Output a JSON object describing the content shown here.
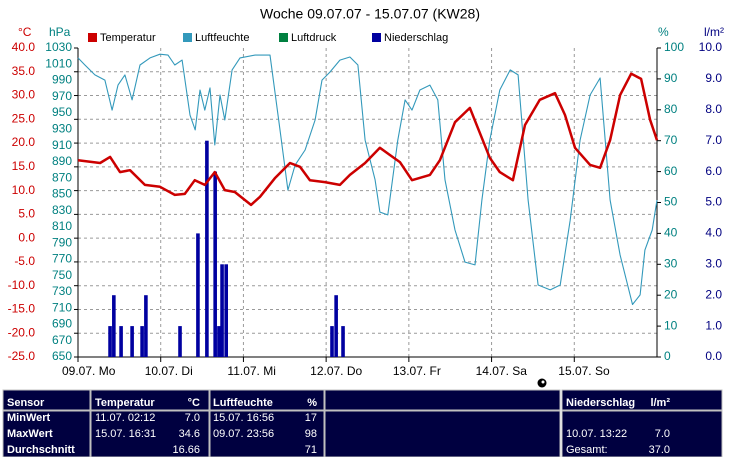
{
  "chart_data": {
    "type": "line",
    "title": "Woche 09.07.07 - 15.07.07 (KW28)",
    "ylabel": "°C",
    "y2label": "hPa",
    "y3label": "%",
    "y4label": "l/m²",
    "xlim": [
      0,
      168
    ],
    "xticks": [
      {
        "value": 0,
        "label": "09.07. Mo"
      },
      {
        "value": 24,
        "label": "10.07. Di"
      },
      {
        "value": 48,
        "label": "11.07. Mi"
      },
      {
        "value": 72,
        "label": "12.07. Do"
      },
      {
        "value": 96,
        "label": "13.07. Fr"
      },
      {
        "value": 120,
        "label": "14.07. Sa"
      },
      {
        "value": 144,
        "label": "15.07. So"
      }
    ],
    "ylim": [
      -25,
      40
    ],
    "yticks": [
      {
        "value": 40,
        "label": "40.0"
      },
      {
        "value": 35,
        "label": "35.0"
      },
      {
        "value": 30,
        "label": "30.0"
      },
      {
        "value": 25,
        "label": "25.0"
      },
      {
        "value": 20,
        "label": "20.0"
      },
      {
        "value": 15,
        "label": "15.0"
      },
      {
        "value": 10,
        "label": "10.0"
      },
      {
        "value": 5,
        "label": "5.0"
      },
      {
        "value": 0,
        "label": "0.0"
      },
      {
        "value": -5,
        "label": "-5.0"
      },
      {
        "value": -10,
        "label": "-10.0"
      },
      {
        "value": -15,
        "label": "-15.0"
      },
      {
        "value": -20,
        "label": "-20.0"
      },
      {
        "value": -25,
        "label": "-25.0"
      }
    ],
    "y2lim": [
      650,
      1030
    ],
    "y2ticks": [
      1030,
      1010,
      990,
      970,
      950,
      930,
      910,
      890,
      870,
      850,
      830,
      810,
      790,
      770,
      750,
      730,
      710,
      690,
      670,
      650
    ],
    "y3lim": [
      0,
      100
    ],
    "y3ticks": [
      100,
      90,
      80,
      70,
      60,
      50,
      40,
      30,
      20,
      10,
      0
    ],
    "y4lim": [
      0,
      10
    ],
    "y4ticks": [
      {
        "value": 10,
        "label": "10.0"
      },
      {
        "value": 9,
        "label": "9.0"
      },
      {
        "value": 8,
        "label": "8.0"
      },
      {
        "value": 7,
        "label": "7.0"
      },
      {
        "value": 6,
        "label": "6.0"
      },
      {
        "value": 5,
        "label": "5.0"
      },
      {
        "value": 4,
        "label": "4.0"
      },
      {
        "value": 3,
        "label": "3.0"
      },
      {
        "value": 2,
        "label": "2.0"
      },
      {
        "value": 1,
        "label": "1.0"
      },
      {
        "value": 0,
        "label": "0.0"
      }
    ],
    "grid": true,
    "series": [
      {
        "name": "Temperatur",
        "color": "#cc0000",
        "type": "line",
        "axis": "y",
        "x": [
          0,
          6.4,
          9.3,
          12.2,
          15.1,
          19.4,
          23.8,
          28.1,
          31,
          33.9,
          36.8,
          39.7,
          42.6,
          45.5,
          50.2,
          52.8,
          57.1,
          61.5,
          64.4,
          67.3,
          71.6,
          76,
          78.9,
          83.3,
          87.6,
          90.5,
          93.4,
          96.9,
          102.1,
          105,
          109.4,
          113.7,
          116.6,
          119.5,
          122.4,
          126.2,
          129.7,
          134,
          138.4,
          141.3,
          144.2,
          148.6,
          151.5,
          154.4,
          157.3,
          160.5,
          163.4,
          166,
          168
        ],
        "values": [
          16.4,
          15.8,
          17.1,
          13.9,
          14.3,
          11.2,
          10.8,
          9.1,
          9.3,
          12.2,
          11.2,
          13.9,
          10.1,
          9.7,
          7.0,
          8.7,
          12.6,
          15.8,
          15,
          12.2,
          11.8,
          11.2,
          13.3,
          15.8,
          19,
          17.5,
          16,
          12.2,
          13.3,
          16.4,
          24.4,
          27.4,
          22.1,
          16.9,
          13.9,
          12.2,
          23.8,
          29.1,
          30.5,
          25.9,
          19,
          15.4,
          14.8,
          20.6,
          30.1,
          34.6,
          33.5,
          24.9,
          20.6
        ]
      },
      {
        "name": "Luftfeuchte",
        "color": "#3399bb",
        "type": "line",
        "axis": "y3",
        "x": [
          0,
          2,
          4.9,
          7.8,
          9.9,
          11.6,
          13.6,
          15.7,
          18,
          20.9,
          23.8,
          26.1,
          28.1,
          30.2,
          32.5,
          34,
          35.4,
          36.8,
          38.3,
          39.7,
          41.2,
          42.6,
          44.7,
          47,
          51.4,
          55.7,
          58.6,
          60.9,
          63,
          65.9,
          68.8,
          70.8,
          73.1,
          76,
          78.9,
          81.2,
          83.3,
          86.2,
          87.6,
          89.9,
          92.8,
          94.9,
          96.9,
          99.2,
          102.1,
          104.4,
          106.5,
          109.4,
          112.3,
          115.2,
          117.2,
          119.5,
          122.4,
          125.4,
          127.7,
          130.6,
          133.5,
          137,
          139.9,
          142.8,
          145.7,
          148.6,
          151.5,
          154.4,
          157.3,
          160.9,
          163.1,
          164.5,
          166.6,
          168
        ],
        "values": [
          96.8,
          94.5,
          91.3,
          89.6,
          79.9,
          88,
          91.3,
          83.2,
          94.5,
          96.8,
          98,
          97.7,
          94.5,
          96.1,
          78.3,
          73.5,
          86.4,
          79.9,
          87.1,
          68.6,
          84.8,
          76.7,
          92.9,
          96.8,
          97.7,
          97.7,
          73.5,
          54,
          62.1,
          67,
          76.7,
          89.6,
          92.2,
          96.1,
          97.1,
          94.5,
          70.2,
          57.3,
          46.9,
          46,
          70.2,
          83.2,
          79.9,
          86.4,
          88,
          83.2,
          57.3,
          41.1,
          30.7,
          29.8,
          50.8,
          70.2,
          86.4,
          92.9,
          91.3,
          50.8,
          23.3,
          21.7,
          23.3,
          44.3,
          70.2,
          84.8,
          90.3,
          50.8,
          33,
          17,
          20.1,
          34.6,
          41.1,
          50.8
        ]
      },
      {
        "name": "Luftdruck",
        "color": "#008040",
        "type": "line",
        "axis": "y2",
        "x": [],
        "values": []
      },
      {
        "name": "Niederschlag",
        "color": "#0000a0",
        "type": "bar",
        "axis": "y4",
        "x": [
          9.3,
          10.4,
          12.5,
          15.7,
          18.6,
          19.7,
          29.6,
          34.8,
          37.4,
          39.8,
          40.9,
          41.8,
          43,
          73.7,
          74.9,
          76.9
        ],
        "values": [
          1,
          2,
          1,
          1,
          1,
          2,
          1,
          4,
          7,
          6,
          1,
          3,
          3,
          1,
          2,
          1
        ]
      }
    ]
  },
  "table": {
    "header": {
      "label": "Sensor",
      "temp_head": "Temperatur",
      "temp_unit": "°C",
      "hum_head": "Luftfeuchte",
      "hum_unit": "%",
      "rain_head": "Niederschlag",
      "rain_unit": "l/m²"
    },
    "rows": [
      {
        "label": "MinWert",
        "temp_time": "11.07. 02:12",
        "temp": "7.0",
        "hum_time": "15.07. 16:56",
        "hum": "17"
      },
      {
        "label": "MaxWert",
        "temp_time": "15.07. 16:31",
        "temp": "34.6",
        "hum_time": "09.07. 23:56",
        "hum": "98",
        "rain_time": "10.07. 13:22",
        "rain": "7.0"
      },
      {
        "label": "Durchschnitt",
        "temp": "16.66",
        "hum": "71",
        "rain_time": "Gesamt:",
        "rain": "37.0"
      }
    ]
  }
}
